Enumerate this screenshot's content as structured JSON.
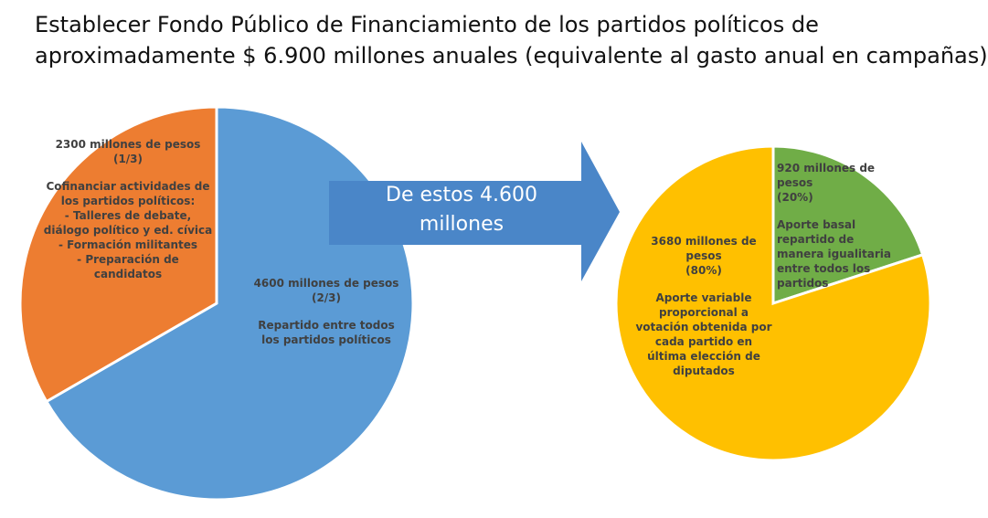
{
  "title": [
    "Establecer Fondo Público de Financiamiento de los partidos políticos de",
    "aproximadamente $ 6.900 millones anuales (equivalente al gasto anual en campañas)"
  ],
  "arrow_text": "De estos 4.600 millones",
  "chart_data": [
    {
      "type": "pie",
      "values": [
        4600,
        2300
      ],
      "value_labels": [
        "4600 millones de pesos",
        "2300 millones de pesos"
      ],
      "shares": [
        "(2/3)",
        "(1/3)"
      ],
      "colors": [
        "#5b9bd5",
        "#ed7d31"
      ],
      "descriptions": [
        [
          "Repartido entre todos los partidos políticos"
        ],
        [
          "Cofinanciar actividades de los partidos políticos:",
          "- Talleres de debate, diálogo político y ed. cívica",
          "- Formación militantes",
          "- Preparación de candidatos"
        ]
      ]
    },
    {
      "type": "pie",
      "values": [
        920,
        3680
      ],
      "value_labels": [
        "920 millones de pesos",
        "3680 millones de pesos"
      ],
      "shares": [
        "(20%)",
        "(80%)"
      ],
      "colors": [
        "#70ad47",
        "#ffc000"
      ],
      "descriptions": [
        [
          "Aporte basal repartido de manera igualitaria entre todos los partidos"
        ],
        [
          "Aporte variable proporcional a votación obtenida por cada partido en última elección de diputados"
        ]
      ]
    }
  ]
}
